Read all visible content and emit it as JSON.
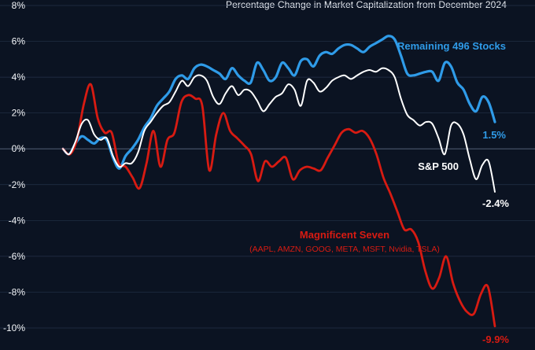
{
  "chart_data": {
    "type": "line",
    "title": "",
    "subtitle": "Percentage Change in Market Capitalization from December 2024",
    "xlabel": "",
    "ylabel": "",
    "ylim": [
      -10,
      8
    ],
    "yticks": [
      8,
      6,
      4,
      2,
      0,
      -2,
      -4,
      -6,
      -8,
      -10
    ],
    "ytick_labels": [
      "8%",
      "6%",
      "4%",
      "2%",
      "0%",
      "-2%",
      "-4%",
      "-6%",
      "-8%",
      "-10%"
    ],
    "grid": true,
    "colors": {
      "background": "#0b1322",
      "grid": "#24324a",
      "remaining": "#2f9be8",
      "sp500": "#ffffff",
      "mag7": "#d81b12",
      "tick_text": "#f2f4f7"
    },
    "series": [
      {
        "key": "remaining",
        "name": "Remaining 496 Stocks",
        "end_label": "1.5%",
        "values": [
          0,
          -0.3,
          0.3,
          0.7,
          0.5,
          0.3,
          0.6,
          0.5,
          -0.5,
          -1.1,
          -0.4,
          0,
          0.5,
          1.2,
          1.7,
          2.4,
          2.8,
          3.2,
          3.9,
          4.1,
          3.9,
          4.5,
          4.7,
          4.6,
          4.4,
          4.2,
          3.9,
          4.5,
          4.1,
          3.8,
          3.7,
          4.8,
          4.4,
          3.8,
          4.0,
          4.8,
          4.5,
          4.1,
          4.9,
          5.0,
          4.6,
          5.2,
          5.4,
          5.3,
          5.6,
          5.8,
          5.8,
          5.6,
          5.4,
          5.7,
          5.9,
          6.1,
          6.3,
          6.1,
          5.2,
          4.2,
          4.1,
          4.2,
          4.3,
          4.3,
          3.8,
          4.8,
          4.6,
          3.7,
          3.3,
          2.5,
          2.1,
          2.9,
          2.6,
          1.5
        ]
      },
      {
        "key": "sp500",
        "name": "S&P 500",
        "end_label": "-2.4%",
        "values": [
          0,
          -0.3,
          0.4,
          1.4,
          1.6,
          0.8,
          0.5,
          0.6,
          -0.4,
          -1.0,
          -0.8,
          -0.8,
          -0.2,
          1.0,
          1.5,
          2.0,
          2.4,
          2.6,
          3.2,
          3.8,
          3.5,
          4.0,
          4.1,
          3.8,
          2.9,
          2.5,
          3.1,
          3.5,
          3.0,
          3.3,
          3.2,
          2.7,
          2.1,
          2.5,
          2.9,
          3.1,
          3.6,
          3.3,
          2.4,
          3.8,
          3.7,
          3.2,
          3.4,
          3.8,
          4.0,
          4.1,
          3.9,
          4.1,
          4.3,
          4.4,
          4.3,
          4.5,
          4.4,
          4.0,
          2.8,
          1.9,
          1.6,
          1.3,
          1.5,
          1.4,
          0.6,
          -0.3,
          1.3,
          1.4,
          0.8,
          -0.6,
          -1.7,
          -0.9,
          -0.7,
          -2.4
        ]
      },
      {
        "key": "mag7",
        "name": "Magnificent Seven",
        "name_sub": "(AAPL, AMZN, GOOG, META, MSFT, Nvidia, TSLA)",
        "end_label": "-9.9%",
        "values": [
          0,
          -0.3,
          0.5,
          2.5,
          3.6,
          1.7,
          0.9,
          0.9,
          -0.8,
          -1.0,
          -1.6,
          -2.2,
          -0.8,
          1.0,
          -1.0,
          0.5,
          0.9,
          2.6,
          3.0,
          2.8,
          2.4,
          -1.2,
          0.8,
          2.0,
          1.0,
          0.6,
          0.2,
          -0.3,
          -1.8,
          -0.7,
          -1.0,
          -0.7,
          -0.5,
          -1.7,
          -1.2,
          -1.0,
          -1.1,
          -1.2,
          -0.5,
          0.2,
          0.9,
          1.1,
          0.9,
          1.0,
          0.6,
          -0.3,
          -1.6,
          -2.5,
          -3.5,
          -4.5,
          -4.5,
          -5.2,
          -6.8,
          -7.8,
          -7.2,
          -6.0,
          -7.5,
          -8.5,
          -9.1,
          -9.2,
          -8.1,
          -7.7,
          -9.9
        ]
      }
    ]
  }
}
